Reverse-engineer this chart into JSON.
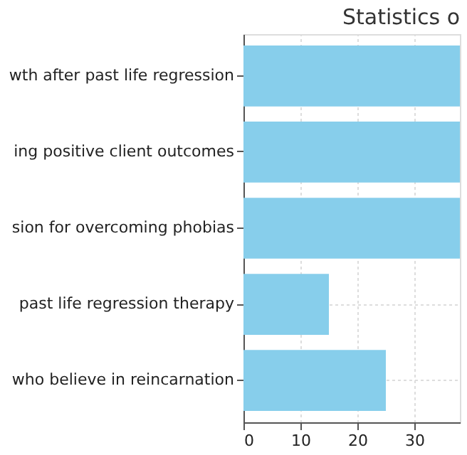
{
  "chart_data": {
    "type": "bar",
    "orientation": "horizontal",
    "title": "Statistics o",
    "categories": [
      "wth after past life regression",
      "ing positive client outcomes",
      "sion for overcoming phobias",
      "past life regression therapy",
      "who believe in reincarnation"
    ],
    "values": [
      38,
      38,
      38,
      15,
      25
    ],
    "color": "#87ceeb",
    "xlim": [
      0,
      38
    ],
    "xticks": [
      0,
      10,
      20,
      30
    ],
    "grid": true
  }
}
